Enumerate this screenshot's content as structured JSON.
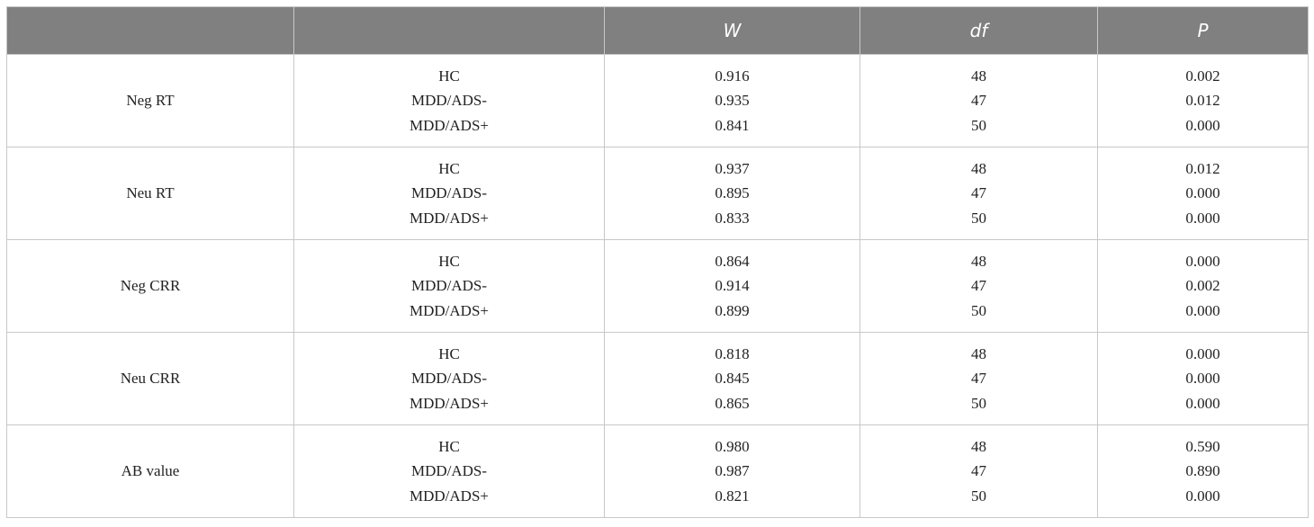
{
  "table": {
    "header": [
      "W",
      "df",
      "P"
    ],
    "groups": [
      {
        "label": "Neg RT",
        "rows": [
          [
            "HC",
            "0.916",
            "48",
            "0.002"
          ],
          [
            "MDD/ADS-",
            "0.935",
            "47",
            "0.012"
          ],
          [
            "MDD/ADS+",
            "0.841",
            "50",
            "0.000"
          ]
        ]
      },
      {
        "label": "Neu RT",
        "rows": [
          [
            "HC",
            "0.937",
            "48",
            "0.012"
          ],
          [
            "MDD/ADS-",
            "0.895",
            "47",
            "0.000"
          ],
          [
            "MDD/ADS+",
            "0.833",
            "50",
            "0.000"
          ]
        ]
      },
      {
        "label": "Neg CRR",
        "rows": [
          [
            "HC",
            "0.864",
            "48",
            "0.000"
          ],
          [
            "MDD/ADS-",
            "0.914",
            "47",
            "0.002"
          ],
          [
            "MDD/ADS+",
            "0.899",
            "50",
            "0.000"
          ]
        ]
      },
      {
        "label": "Neu CRR",
        "rows": [
          [
            "HC",
            "0.818",
            "48",
            "0.000"
          ],
          [
            "MDD/ADS-",
            "0.845",
            "47",
            "0.000"
          ],
          [
            "MDD/ADS+",
            "0.865",
            "50",
            "0.000"
          ]
        ]
      },
      {
        "label": "AB value",
        "rows": [
          [
            "HC",
            "0.980",
            "48",
            "0.590"
          ],
          [
            "MDD/ADS-",
            "0.987",
            "47",
            "0.890"
          ],
          [
            "MDD/ADS+",
            "0.821",
            "50",
            "0.000"
          ]
        ]
      }
    ]
  }
}
